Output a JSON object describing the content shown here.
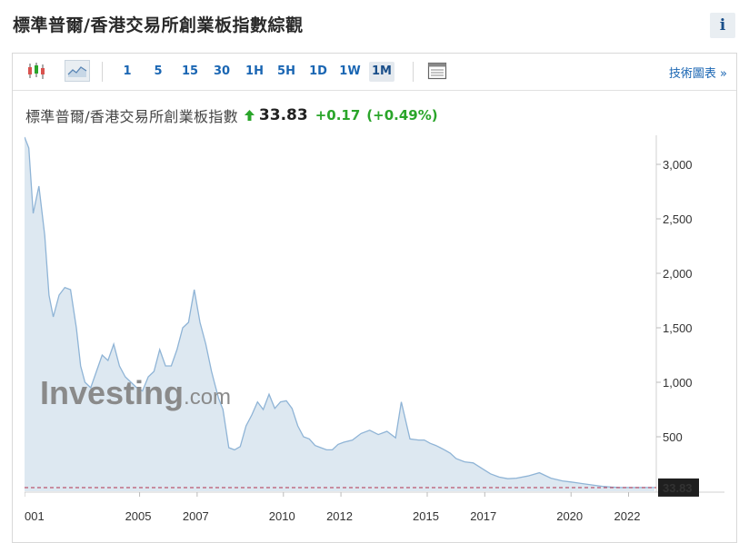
{
  "page": {
    "title": "標準普爾/香港交易所創業板指數綜觀",
    "info_label": "i"
  },
  "toolbar": {
    "icons": [
      "candlestick-icon",
      "area-chart-icon",
      "table-icon"
    ],
    "timeframes": [
      "1",
      "5",
      "15",
      "30",
      "1H",
      "5H",
      "1D",
      "1W",
      "1M"
    ],
    "active_timeframe": "1M",
    "tech_chart_link": "技術圖表 »"
  },
  "quote": {
    "name": "標準普爾/香港交易所創業板指數",
    "price": "33.83",
    "change": "+0.17",
    "change_pct": "(+0.49%)",
    "direction": "up",
    "up_color": "#2aa52a"
  },
  "watermark": {
    "brand": "Investing",
    "suffix": ".com"
  },
  "chart_data": {
    "type": "area",
    "xlabel": "",
    "ylabel": "",
    "x_ticks": [
      "001",
      "2005",
      "2007",
      "2010",
      "2012",
      "2015",
      "2017",
      "2020",
      "2022"
    ],
    "y_ticks": [
      "500",
      "1,000",
      "1,500",
      "2,000",
      "2,500",
      "3,000"
    ],
    "ylim": [
      0,
      3200
    ],
    "xlim": [
      2001.0,
      2022.9
    ],
    "last_value_label": "33.83",
    "last_value": 33.83,
    "line_color": "#8fb4d6",
    "fill_color": "#dde8f1",
    "series": [
      {
        "x": [
          2001.0,
          2001.15,
          2001.3,
          2001.5,
          2001.7,
          2001.85,
          2002.0,
          2002.2,
          2002.4,
          2002.6,
          2002.8,
          2002.95,
          2003.1,
          2003.3,
          2003.5,
          2003.7,
          2003.9,
          2004.1,
          2004.3,
          2004.5,
          2004.7,
          2004.9,
          2005.1,
          2005.3,
          2005.5,
          2005.7,
          2005.9,
          2006.1,
          2006.3,
          2006.5,
          2006.7,
          2006.9,
          2007.1,
          2007.3,
          2007.5,
          2007.6,
          2007.75,
          2007.9,
          2008.1,
          2008.3,
          2008.5,
          2008.7,
          2008.9,
          2009.1,
          2009.3,
          2009.5,
          2009.7,
          2009.9,
          2010.1,
          2010.3,
          2010.5,
          2010.7,
          2010.9,
          2011.1,
          2011.3,
          2011.5,
          2011.7,
          2011.9,
          2012.1,
          2012.4,
          2012.7,
          2013.0,
          2013.3,
          2013.6,
          2013.9,
          2014.1,
          2014.4,
          2014.7,
          2014.9,
          2015.1,
          2015.3,
          2015.45,
          2015.6,
          2015.8,
          2016.0,
          2016.3,
          2016.6,
          2016.9,
          2017.2,
          2017.5,
          2017.8,
          2018.1,
          2018.5,
          2018.9,
          2019.3,
          2019.7,
          2020.0,
          2020.4,
          2020.8,
          2021.1,
          2021.4,
          2021.7,
          2022.0,
          2022.3,
          2022.6,
          2022.9
        ],
        "y": [
          3250,
          3150,
          2550,
          2800,
          2350,
          1800,
          1600,
          1800,
          1870,
          1850,
          1500,
          1150,
          1000,
          950,
          1100,
          1250,
          1200,
          1350,
          1150,
          1050,
          1000,
          950,
          920,
          1050,
          1100,
          1300,
          1150,
          1150,
          1300,
          1500,
          1550,
          1850,
          1550,
          1350,
          1100,
          1000,
          850,
          750,
          400,
          380,
          410,
          600,
          700,
          820,
          750,
          890,
          760,
          820,
          830,
          760,
          600,
          500,
          480,
          420,
          400,
          380,
          380,
          430,
          450,
          470,
          530,
          560,
          520,
          550,
          490,
          820,
          480,
          470,
          470,
          440,
          420,
          400,
          380,
          350,
          300,
          270,
          260,
          210,
          160,
          130,
          115,
          120,
          140,
          170,
          120,
          95,
          85,
          70,
          55,
          45,
          38,
          34,
          34,
          34,
          34,
          34
        ]
      }
    ]
  }
}
